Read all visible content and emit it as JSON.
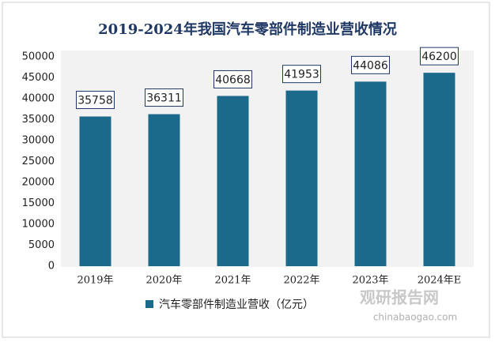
{
  "chart_data": {
    "type": "bar",
    "title": "2019-2024年我国汽车零部件制造业营收情况",
    "categories": [
      "2019年",
      "2020年",
      "2021年",
      "2022年",
      "2023年",
      "2024年E"
    ],
    "series": [
      {
        "name": "汽车零部件制造业营收（亿元）",
        "color": "#1c6a8b",
        "values": [
          35758,
          36311,
          40668,
          41953,
          44086,
          46200
        ]
      }
    ],
    "ylim": [
      0,
      50000
    ],
    "yticks": [
      0,
      5000,
      10000,
      15000,
      20000,
      25000,
      30000,
      35000,
      40000,
      45000,
      50000
    ],
    "grid": false,
    "legend": "bottom",
    "watermark": [
      "观研报告网",
      "chinabaogao.com"
    ]
  }
}
